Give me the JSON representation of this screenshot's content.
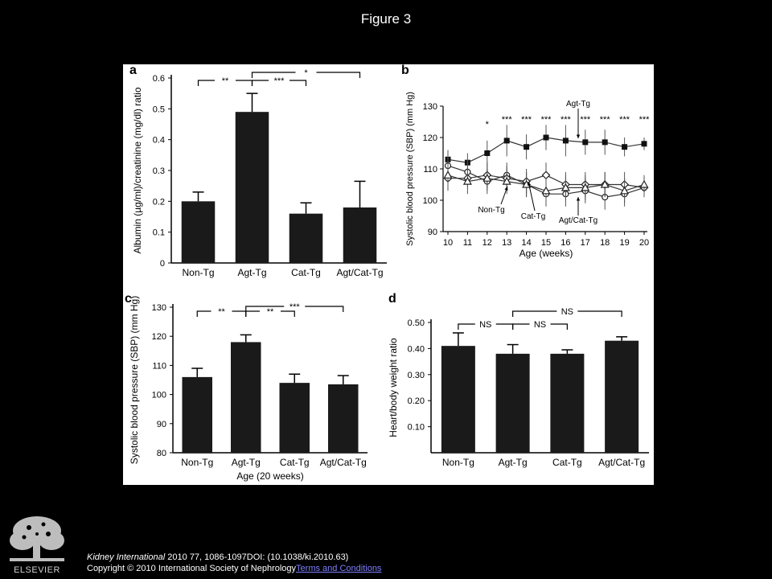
{
  "slide_title": "Figure 3",
  "citation": {
    "journal": "Kidney International",
    "details": " 2010 77, 1086-1097DOI: (10.1038/ki.2010.63)",
    "copyright": "Copyright © 2010 International Society of Nephrology",
    "terms_link": "Terms and Conditions"
  },
  "logo": {
    "icon": "elsevier-tree-icon",
    "text": "ELSEVIER"
  },
  "colors": {
    "background": "#000000",
    "panel": "#ffffff",
    "bar": "#1a1a1a",
    "link": "#7f7fff"
  },
  "chart_data": [
    {
      "panel": "a",
      "type": "bar",
      "categories": [
        "Non-Tg",
        "Agt-Tg",
        "Cat-Tg",
        "Agt/Cat-Tg"
      ],
      "values": [
        0.2,
        0.49,
        0.16,
        0.18
      ],
      "errors": [
        0.03,
        0.06,
        0.035,
        0.085
      ],
      "ylabel": "Albumin (µg/ml)/creatinine (mg/dl) ratio",
      "xlabel": "",
      "ylim": [
        0,
        0.6
      ],
      "yticks": [
        "0",
        "0.1",
        "0.2",
        "0.3",
        "0.4",
        "0.5",
        "0.6"
      ],
      "significance": [
        {
          "from": 0,
          "to": 1,
          "label": "**",
          "level": 1
        },
        {
          "from": 1,
          "to": 2,
          "label": "***",
          "level": 1
        },
        {
          "from": 1,
          "to": 3,
          "label": "*",
          "level": 2
        }
      ]
    },
    {
      "panel": "b",
      "type": "line",
      "x": [
        10,
        11,
        12,
        13,
        14,
        15,
        16,
        17,
        18,
        19,
        20
      ],
      "xticks": [
        "10",
        "11",
        "12",
        "13",
        "14",
        "15",
        "16",
        "17",
        "18",
        "19",
        "20"
      ],
      "xlabel": "Age (weeks)",
      "ylabel": "Systolic blood pressure (SBP) (mm Hg)",
      "ylim": [
        90,
        130
      ],
      "yticks": [
        "90",
        "100",
        "110",
        "120",
        "130"
      ],
      "series": [
        {
          "name": "Agt-Tg",
          "marker": "filled-square",
          "values": [
            113,
            112,
            115,
            119,
            117,
            120,
            119,
            118.5,
            118.5,
            117,
            118
          ],
          "errors": [
            3,
            3,
            4,
            5,
            4,
            4,
            5,
            4,
            4,
            3,
            2
          ]
        },
        {
          "name": "Non-Tg",
          "marker": "open-circle",
          "values": [
            111,
            109,
            106,
            108,
            105,
            102,
            102,
            103,
            101,
            102,
            104
          ],
          "errors": [
            4,
            4,
            4,
            4,
            4,
            4,
            4,
            4,
            4,
            4,
            3
          ]
        },
        {
          "name": "Cat-Tg",
          "marker": "open-diamond",
          "values": [
            107,
            107,
            108,
            107,
            106,
            108,
            105,
            105,
            105,
            105,
            104
          ],
          "errors": [
            4,
            3,
            4,
            4,
            4,
            4,
            4,
            4,
            4,
            4,
            3
          ]
        },
        {
          "name": "Agt/Cat-Tg",
          "marker": "open-triangle",
          "values": [
            108,
            106,
            107,
            106,
            105,
            103,
            104,
            104,
            105,
            103,
            105
          ],
          "errors": [
            4,
            4,
            4,
            4,
            4,
            4,
            4,
            4,
            4,
            4,
            3
          ]
        }
      ],
      "significance_marks": [
        {
          "x": 12,
          "label": "*"
        },
        {
          "x": 13,
          "label": "***"
        },
        {
          "x": 14,
          "label": "***"
        },
        {
          "x": 15,
          "label": "***"
        },
        {
          "x": 16,
          "label": "***"
        },
        {
          "x": 17,
          "label": "***"
        },
        {
          "x": 18,
          "label": "***"
        },
        {
          "x": 19,
          "label": "***"
        },
        {
          "x": 20,
          "label": "***"
        }
      ]
    },
    {
      "panel": "c",
      "type": "bar",
      "categories": [
        "Non-Tg",
        "Agt-Tg",
        "Cat-Tg",
        "Agt/Cat-Tg"
      ],
      "values": [
        106,
        118,
        104,
        103.5
      ],
      "errors": [
        3,
        2.5,
        3,
        3
      ],
      "ylabel": "Systolic blood pressure (SBP) (mm Hg)",
      "xlabel": "Age (20 weeks)",
      "ylim": [
        80,
        130
      ],
      "yticks": [
        "80",
        "90",
        "100",
        "110",
        "120",
        "130"
      ],
      "significance": [
        {
          "from": 0,
          "to": 1,
          "label": "**",
          "level": 1
        },
        {
          "from": 1,
          "to": 2,
          "label": "**",
          "level": 1
        },
        {
          "from": 1,
          "to": 3,
          "label": "***",
          "level": 2
        }
      ]
    },
    {
      "panel": "d",
      "type": "bar",
      "categories": [
        "Non-Tg",
        "Agt-Tg",
        "Cat-Tg",
        "Agt/Cat-Tg"
      ],
      "values": [
        0.41,
        0.38,
        0.38,
        0.43
      ],
      "errors": [
        0.05,
        0.035,
        0.015,
        0.015
      ],
      "ylabel": "Heart/body weight ratio",
      "xlabel": "",
      "ylim": [
        0,
        0.5
      ],
      "yticks": [
        "0.10",
        "0.20",
        "0.30",
        "0.40",
        "0.50"
      ],
      "significance": [
        {
          "from": 0,
          "to": 1,
          "label": "NS",
          "level": 1
        },
        {
          "from": 1,
          "to": 2,
          "label": "NS",
          "level": 1
        },
        {
          "from": 1,
          "to": 3,
          "label": "NS",
          "level": 2
        }
      ]
    }
  ]
}
